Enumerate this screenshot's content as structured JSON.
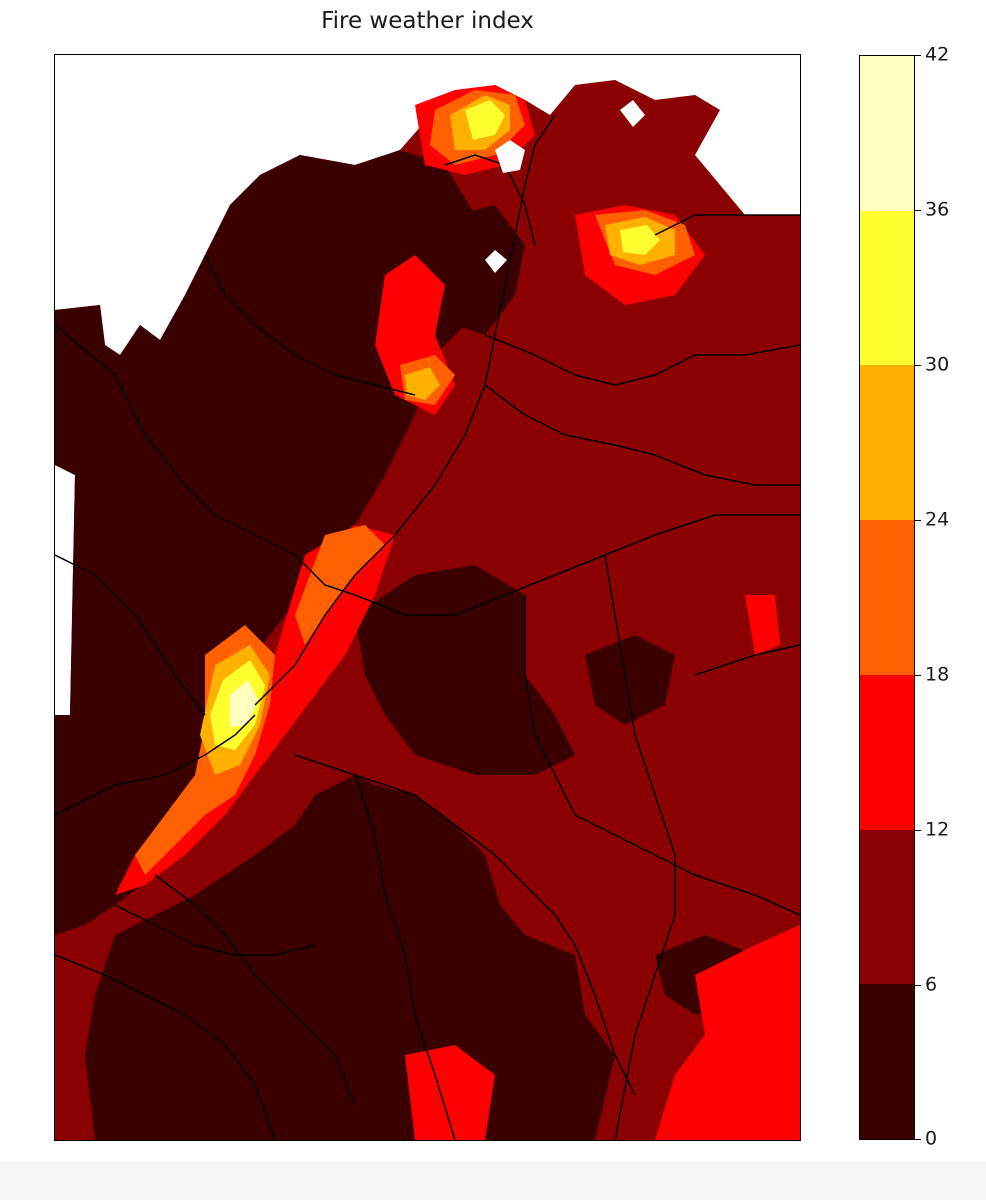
{
  "title": "Fire weather index",
  "colorbar": {
    "ticks": [
      "0",
      "6",
      "12",
      "18",
      "24",
      "30",
      "36",
      "42"
    ],
    "levels": [
      {
        "from": 0,
        "to": 6,
        "color": "#3a0000"
      },
      {
        "from": 6,
        "to": 12,
        "color": "#8b0000"
      },
      {
        "from": 12,
        "to": 18,
        "color": "#ff0000"
      },
      {
        "from": 18,
        "to": 24,
        "color": "#ff6000"
      },
      {
        "from": 24,
        "to": 30,
        "color": "#ffb000"
      },
      {
        "from": 30,
        "to": 36,
        "color": "#ffff30"
      },
      {
        "from": 36,
        "to": 42,
        "color": "#ffffc0"
      }
    ]
  }
}
